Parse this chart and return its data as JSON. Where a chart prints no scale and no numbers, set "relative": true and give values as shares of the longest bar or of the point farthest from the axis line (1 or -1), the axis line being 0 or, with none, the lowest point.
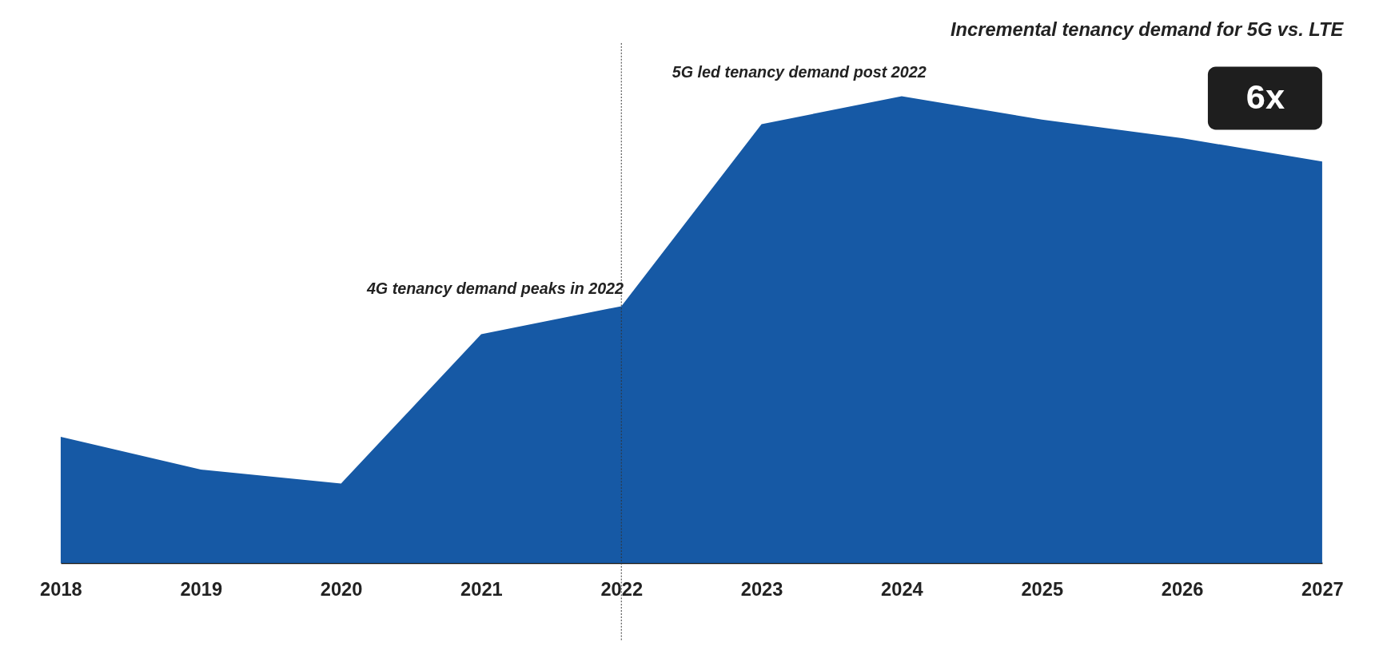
{
  "chart_data": {
    "type": "area",
    "title": "Incremental tenancy demand for 5G vs. LTE",
    "relative": true,
    "categories": [
      "2018",
      "2019",
      "2020",
      "2021",
      "2022",
      "2023",
      "2024",
      "2025",
      "2026",
      "2027"
    ],
    "series": [
      {
        "color": "#1659a5",
        "values": [
          0.27,
          0.2,
          0.17,
          0.49,
          0.55,
          0.94,
          1,
          0.95,
          0.91,
          0.86
        ]
      }
    ],
    "ref_lines": [
      {
        "axis": "x",
        "value": "2022",
        "line_style": "dotted",
        "color": "#333333"
      }
    ],
    "annotations": [
      {
        "text": "4G tenancy demand peaks in 2022",
        "x": "2022",
        "y": 0.55
      },
      {
        "text": "5G led tenancy demand post 2022",
        "x": "2024",
        "y": 1
      },
      "6x"
    ],
    "grid": false
  }
}
